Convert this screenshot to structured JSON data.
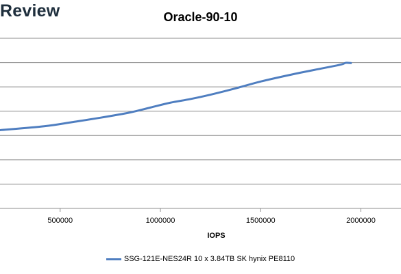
{
  "watermark": "Review",
  "chart_data": {
    "type": "line",
    "title": "Oracle-90-10",
    "xlabel": "IOPS",
    "ylabel": "",
    "x_ticks": [
      500000,
      1000000,
      1500000,
      2000000
    ],
    "x_tick_labels": [
      "500000",
      "1000000",
      "1500000",
      "2000000"
    ],
    "xlim": [
      200000,
      2200000
    ],
    "ylim": [
      0,
      7
    ],
    "grid": true,
    "legend_position": "bottom",
    "series": [
      {
        "name": "SSG-121E-NES24R 10 x 3.84TB SK hynix PE8110",
        "color": "#4f7ec0",
        "points": [
          [
            200000,
            3.22
          ],
          [
            420000,
            3.38
          ],
          [
            560000,
            3.55
          ],
          [
            700000,
            3.73
          ],
          [
            850000,
            3.95
          ],
          [
            950000,
            4.15
          ],
          [
            1050000,
            4.35
          ],
          [
            1150000,
            4.5
          ],
          [
            1250000,
            4.68
          ],
          [
            1380000,
            4.95
          ],
          [
            1500000,
            5.22
          ],
          [
            1650000,
            5.5
          ],
          [
            1800000,
            5.75
          ],
          [
            1880000,
            5.88
          ],
          [
            1910000,
            5.94
          ],
          [
            1925000,
            5.99
          ],
          [
            1950000,
            5.98
          ]
        ]
      }
    ]
  }
}
